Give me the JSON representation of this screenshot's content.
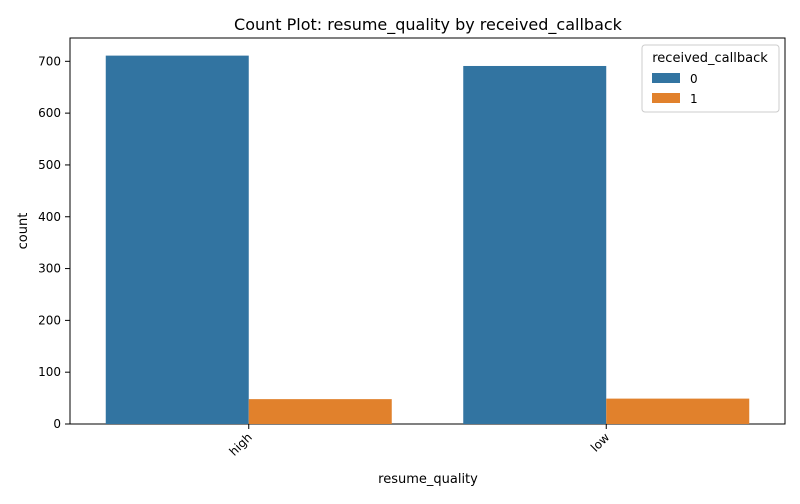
{
  "chart_data": {
    "type": "bar",
    "title": "Count Plot: resume_quality by received_callback",
    "xlabel": "resume_quality",
    "ylabel": "count",
    "categories": [
      "high",
      "low"
    ],
    "ylim": [
      0,
      745
    ],
    "yticks": [
      0,
      100,
      200,
      300,
      400,
      500,
      600,
      700
    ],
    "grid": false,
    "legend": {
      "title": "received_callback",
      "position": "top-right"
    },
    "series": [
      {
        "name": "0",
        "color": "#3274a1",
        "values": [
          711,
          691
        ]
      },
      {
        "name": "1",
        "color": "#e1812c",
        "values": [
          48,
          49
        ]
      }
    ]
  }
}
